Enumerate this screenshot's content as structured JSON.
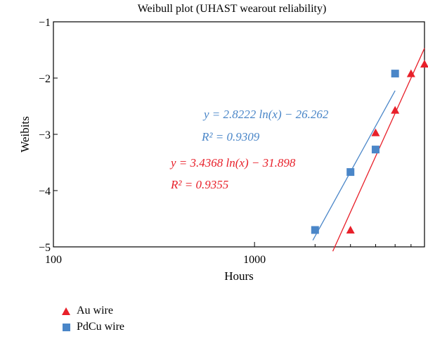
{
  "chart_data": {
    "type": "scatter",
    "title": "Weibull plot (UHAST wearout reliability)",
    "xlabel": "Hours",
    "ylabel": "Weibits",
    "xscale": "log",
    "xlim": [
      100,
      7000
    ],
    "ylim": [
      -5,
      -1
    ],
    "xticks": [
      100,
      1000
    ],
    "xtick_labels": [
      "100",
      "1000"
    ],
    "yticks": [
      -1,
      -2,
      -3,
      -4,
      -5
    ],
    "ytick_labels": [
      "−1",
      "−2",
      "−3",
      "−4",
      "−5"
    ],
    "grid": false,
    "legend_position": "bottom-left",
    "series": [
      {
        "name": "Au wire",
        "marker": "triangle",
        "color": "#e8202a",
        "x": [
          3000,
          4000,
          5000,
          6000,
          7000
        ],
        "y": [
          -4.7,
          -2.97,
          -2.57,
          -1.92,
          -1.75
        ],
        "fit": {
          "equation": "y = 3.4368 ln(x) − 31.898",
          "r2": "R² = 0.9355",
          "slope": 3.4368,
          "intercept": -31.898,
          "x_range": [
            2450,
            7000
          ]
        }
      },
      {
        "name": "PdCu wire",
        "marker": "square",
        "color": "#4a86c8",
        "x": [
          2000,
          3000,
          4000,
          5000
        ],
        "y": [
          -4.7,
          -3.67,
          -3.27,
          -1.92
        ],
        "fit": {
          "equation": "y = 2.8222 ln(x) − 26.262",
          "r2": "R² = 0.9309",
          "slope": 2.8222,
          "intercept": -26.262,
          "x_range": [
            1950,
            5000
          ]
        }
      }
    ]
  }
}
